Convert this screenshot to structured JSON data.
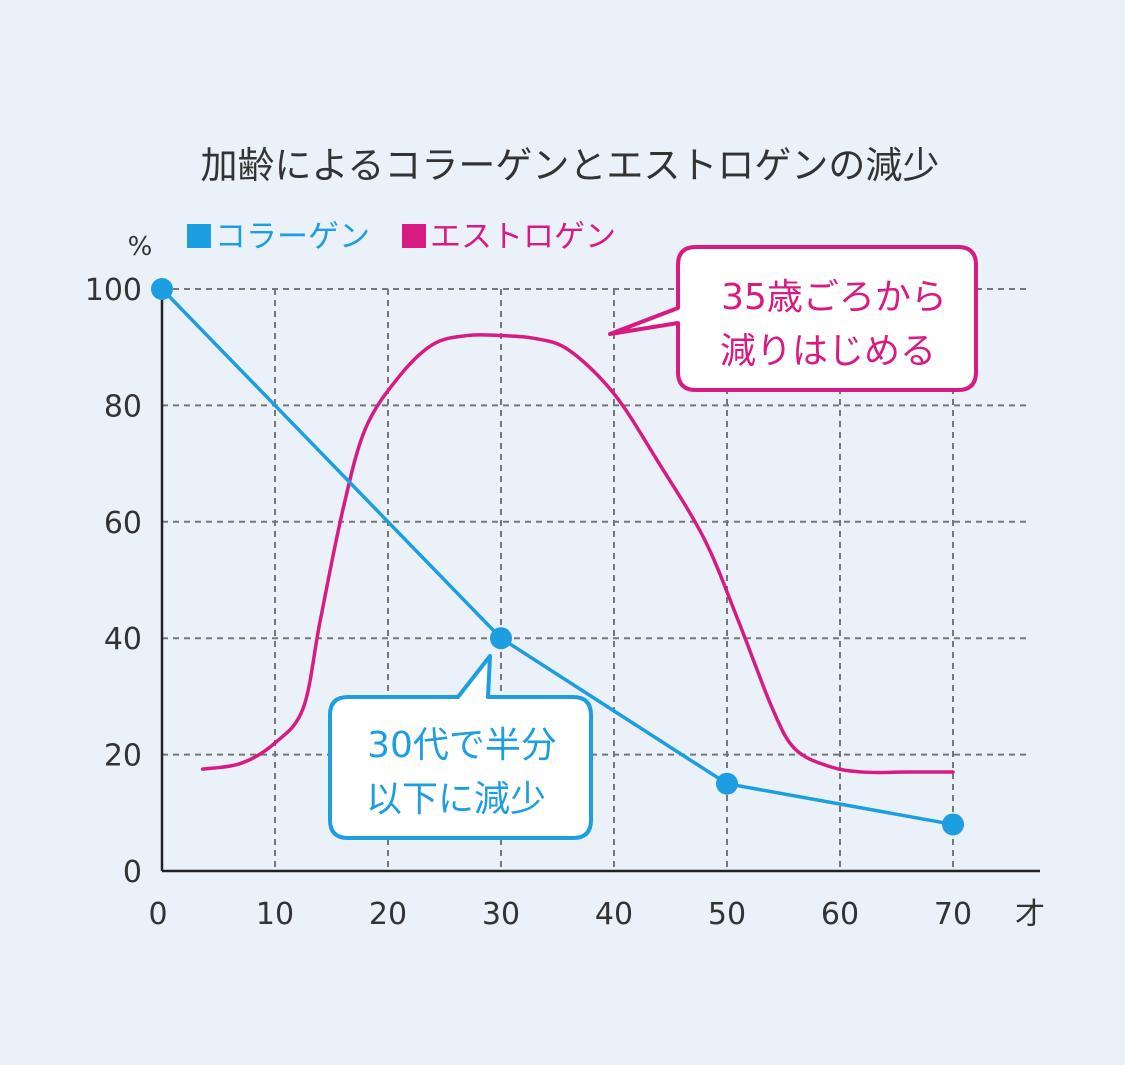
{
  "chart_data": {
    "type": "line",
    "title": "加齢によるコラーゲンとエストロゲンの減少",
    "ylabel": "%",
    "xlabel": "才",
    "xlim": [
      0,
      78
    ],
    "ylim": [
      0,
      103
    ],
    "x_ticks": [
      "0",
      "10",
      "20",
      "30",
      "40",
      "50",
      "60",
      "70"
    ],
    "y_ticks": [
      "0",
      "20",
      "40",
      "60",
      "80",
      "100"
    ],
    "grid": true,
    "legend_position": "top-left",
    "series": [
      {
        "name": "コラーゲン",
        "color": "#1d9ee0",
        "x": [
          0,
          30,
          50,
          70
        ],
        "y": [
          100,
          40,
          15,
          8
        ],
        "markers": true
      },
      {
        "name": "エストロゲン",
        "color": "#d81b83",
        "x": [
          3.6,
          7,
          10,
          12.5,
          14,
          16,
          18,
          21,
          24,
          27,
          30,
          33,
          36,
          40,
          44,
          48,
          51,
          54,
          56,
          59,
          62,
          66,
          70
        ],
        "y": [
          17.5,
          18.5,
          22,
          28,
          43,
          62,
          76,
          85,
          90.5,
          92,
          92,
          91.5,
          89.5,
          82,
          70,
          57,
          43,
          28,
          21,
          18,
          17,
          17,
          17
        ],
        "markers": false
      }
    ],
    "annotations": [
      {
        "line1": "35歳ごろから",
        "line2": "減りはじめる",
        "color": "#d81b83"
      },
      {
        "line1": "30代で半分",
        "line2": "以下に減少",
        "color": "#1d9ee0"
      }
    ]
  }
}
